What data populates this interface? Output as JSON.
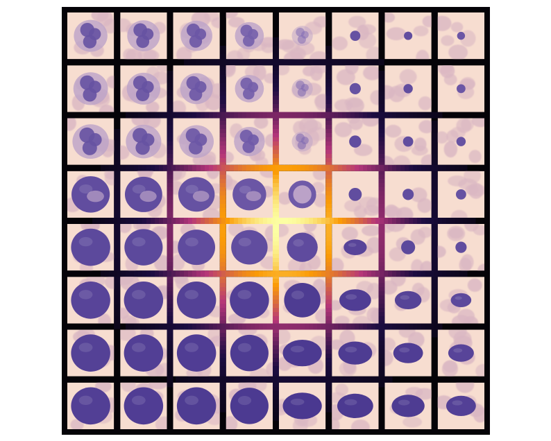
{
  "grid": {
    "rows": 8,
    "cols": 8,
    "cells": [
      [
        {
          "nucleus": "lobed",
          "size": 0.72,
          "darkness": 0.55
        },
        {
          "nucleus": "lobed",
          "size": 0.7,
          "darkness": 0.55
        },
        {
          "nucleus": "lobed",
          "size": 0.68,
          "darkness": 0.5
        },
        {
          "nucleus": "lobed",
          "size": 0.62,
          "darkness": 0.4
        },
        {
          "nucleus": "faint-lobed",
          "size": 0.45,
          "darkness": 0.25
        },
        {
          "nucleus": "dot",
          "size": 0.22,
          "darkness": 0.55
        },
        {
          "nucleus": "dot",
          "size": 0.18,
          "darkness": 0.6
        },
        {
          "nucleus": "dot",
          "size": 0.17,
          "darkness": 0.5
        }
      ],
      [
        {
          "nucleus": "lobed",
          "size": 0.74,
          "darkness": 0.55
        },
        {
          "nucleus": "lobed",
          "size": 0.72,
          "darkness": 0.55
        },
        {
          "nucleus": "lobed",
          "size": 0.7,
          "darkness": 0.5
        },
        {
          "nucleus": "lobed",
          "size": 0.62,
          "darkness": 0.42
        },
        {
          "nucleus": "faint-lobed",
          "size": 0.45,
          "darkness": 0.3
        },
        {
          "nucleus": "dot",
          "size": 0.24,
          "darkness": 0.55
        },
        {
          "nucleus": "dot",
          "size": 0.2,
          "darkness": 0.6
        },
        {
          "nucleus": "dot",
          "size": 0.19,
          "darkness": 0.5
        }
      ],
      [
        {
          "nucleus": "lobed",
          "size": 0.78,
          "darkness": 0.55
        },
        {
          "nucleus": "lobed",
          "size": 0.76,
          "darkness": 0.55
        },
        {
          "nucleus": "lobed",
          "size": 0.74,
          "darkness": 0.5
        },
        {
          "nucleus": "lobed",
          "size": 0.66,
          "darkness": 0.45
        },
        {
          "nucleus": "faint-lobed",
          "size": 0.45,
          "darkness": 0.3
        },
        {
          "nucleus": "dot",
          "size": 0.26,
          "darkness": 0.6
        },
        {
          "nucleus": "dot",
          "size": 0.22,
          "darkness": 0.6
        },
        {
          "nucleus": "dot",
          "size": 0.2,
          "darkness": 0.55
        }
      ],
      [
        {
          "nucleus": "round-lobed",
          "size": 0.82,
          "darkness": 0.6
        },
        {
          "nucleus": "round-lobed",
          "size": 0.8,
          "darkness": 0.6
        },
        {
          "nucleus": "round-lobed",
          "size": 0.78,
          "darkness": 0.55
        },
        {
          "nucleus": "round-lobed",
          "size": 0.72,
          "darkness": 0.5
        },
        {
          "nucleus": "ring",
          "size": 0.58,
          "darkness": 0.45
        },
        {
          "nucleus": "dot",
          "size": 0.28,
          "darkness": 0.6
        },
        {
          "nucleus": "dot",
          "size": 0.24,
          "darkness": 0.6
        },
        {
          "nucleus": "dot",
          "size": 0.22,
          "darkness": 0.55
        }
      ],
      [
        {
          "nucleus": "round",
          "size": 0.84,
          "darkness": 0.65
        },
        {
          "nucleus": "round",
          "size": 0.82,
          "darkness": 0.65
        },
        {
          "nucleus": "round",
          "size": 0.8,
          "darkness": 0.62
        },
        {
          "nucleus": "round",
          "size": 0.78,
          "darkness": 0.6
        },
        {
          "nucleus": "round",
          "size": 0.66,
          "darkness": 0.62
        },
        {
          "nucleus": "oval",
          "size": 0.45,
          "darkness": 0.7
        },
        {
          "nucleus": "dot",
          "size": 0.3,
          "darkness": 0.65
        },
        {
          "nucleus": "dot",
          "size": 0.24,
          "darkness": 0.6
        }
      ],
      [
        {
          "nucleus": "round",
          "size": 0.84,
          "darkness": 0.7
        },
        {
          "nucleus": "round",
          "size": 0.84,
          "darkness": 0.72
        },
        {
          "nucleus": "round",
          "size": 0.84,
          "darkness": 0.74
        },
        {
          "nucleus": "round",
          "size": 0.84,
          "darkness": 0.76
        },
        {
          "nucleus": "round",
          "size": 0.78,
          "darkness": 0.8
        },
        {
          "nucleus": "oval",
          "size": 0.62,
          "darkness": 0.78
        },
        {
          "nucleus": "oval",
          "size": 0.52,
          "darkness": 0.72
        },
        {
          "nucleus": "oval",
          "size": 0.4,
          "darkness": 0.65
        }
      ],
      [
        {
          "nucleus": "round",
          "size": 0.84,
          "darkness": 0.74
        },
        {
          "nucleus": "round",
          "size": 0.84,
          "darkness": 0.76
        },
        {
          "nucleus": "round",
          "size": 0.84,
          "darkness": 0.78
        },
        {
          "nucleus": "round",
          "size": 0.82,
          "darkness": 0.8
        },
        {
          "nucleus": "oval",
          "size": 0.76,
          "darkness": 0.82
        },
        {
          "nucleus": "oval",
          "size": 0.66,
          "darkness": 0.8
        },
        {
          "nucleus": "oval",
          "size": 0.58,
          "darkness": 0.78
        },
        {
          "nucleus": "oval",
          "size": 0.5,
          "darkness": 0.7
        }
      ],
      [
        {
          "nucleus": "round",
          "size": 0.84,
          "darkness": 0.76
        },
        {
          "nucleus": "round",
          "size": 0.84,
          "darkness": 0.78
        },
        {
          "nucleus": "round",
          "size": 0.84,
          "darkness": 0.8
        },
        {
          "nucleus": "round",
          "size": 0.82,
          "darkness": 0.82
        },
        {
          "nucleus": "oval",
          "size": 0.76,
          "darkness": 0.84
        },
        {
          "nucleus": "oval",
          "size": 0.7,
          "darkness": 0.82
        },
        {
          "nucleus": "oval",
          "size": 0.64,
          "darkness": 0.8
        },
        {
          "nucleus": "oval",
          "size": 0.58,
          "darkness": 0.75
        }
      ]
    ]
  },
  "heatmap": {
    "peak_row": 3.55,
    "peak_col": 3.55,
    "spread": 1.6
  },
  "colors": {
    "frame": "#050308",
    "cell_background": "#f7ddd0",
    "rbc": "#dab7c3",
    "nucleus_dark": "#3b2a86",
    "nucleus_light": "#9a82c4",
    "heat_low": "#1b0c41",
    "heat_mid": "#b5367a",
    "heat_high": "#fb9b06",
    "heat_peak": "#fcffa4"
  }
}
